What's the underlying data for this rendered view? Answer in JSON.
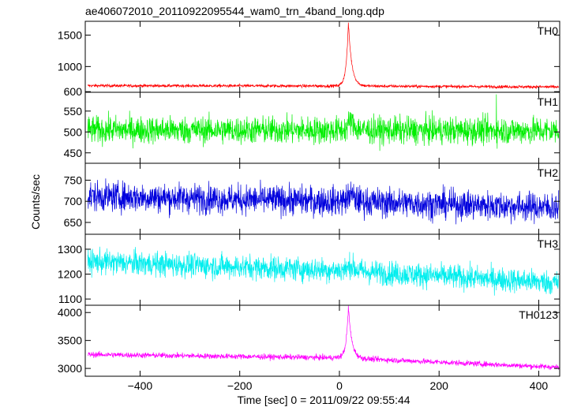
{
  "chart_data": {
    "type": "line",
    "title": "ae406072010_20110922095544_wam0_trn_4band_long.qdp",
    "xlabel": "Time [sec] 0 = 2011/09/22 09:55:44",
    "ylabel": "Counts/sec",
    "xlim": [
      -510,
      442
    ],
    "x_ticks": [
      -400,
      -200,
      0,
      200,
      400
    ],
    "x_tick_labels": [
      "−400",
      "−200",
      "0",
      "200",
      "400"
    ],
    "grid": false,
    "panels": [
      {
        "name": "TH0",
        "color": "#ff0000",
        "ylim": [
          590,
          1720
        ],
        "ticks": [
          600,
          1000,
          1500
        ],
        "tick_labels": [
          "600",
          "1000",
          "1500"
        ],
        "baseline": [
          [
            -505,
            695
          ],
          [
            0,
            690
          ],
          [
            440,
            675
          ]
        ],
        "noise": 22,
        "peak_time": 18,
        "peak_value": 1700,
        "peak_width": 4.5,
        "spikes": []
      },
      {
        "name": "TH1",
        "color": "#00ee00",
        "ylim": [
          425,
          595
        ],
        "ticks": [
          450,
          500,
          550
        ],
        "tick_labels": [
          "450",
          "500",
          "550"
        ],
        "baseline": [
          [
            -505,
            505
          ],
          [
            440,
            503
          ]
        ],
        "noise": 30,
        "peak_time": 22,
        "peak_value": 528,
        "peak_width": 6,
        "spikes": [
          [
            315,
            590
          ]
        ]
      },
      {
        "name": "TH2",
        "color": "#0000dd",
        "ylim": [
          622,
          790
        ],
        "ticks": [
          650,
          700,
          750
        ],
        "tick_labels": [
          "650",
          "700",
          "750"
        ],
        "baseline": [
          [
            -505,
            712
          ],
          [
            0,
            700
          ],
          [
            440,
            685
          ]
        ],
        "noise": 32,
        "peak_time": 22,
        "peak_value": 720,
        "peak_width": 6,
        "spikes": []
      },
      {
        "name": "TH3",
        "color": "#00eeee",
        "ylim": [
          1075,
          1360
        ],
        "ticks": [
          1100,
          1200,
          1300
        ],
        "tick_labels": [
          "1100",
          "1200",
          "1300"
        ],
        "baseline": [
          [
            -505,
            1250
          ],
          [
            0,
            1215
          ],
          [
            440,
            1165
          ]
        ],
        "noise": 45,
        "peak_time": 22,
        "peak_value": 1240,
        "peak_width": 6,
        "spikes": []
      },
      {
        "name": "TH0123",
        "color": "#ff00ff",
        "ylim": [
          2860,
          4130
        ],
        "ticks": [
          3000,
          3500,
          4000
        ],
        "tick_labels": [
          "3000",
          "3500",
          "4000"
        ],
        "baseline": [
          [
            -505,
            3250
          ],
          [
            0,
            3190
          ],
          [
            440,
            3020
          ]
        ],
        "noise": 45,
        "peak_time": 18,
        "peak_value": 4100,
        "peak_width": 4.5,
        "spikes": []
      }
    ]
  }
}
